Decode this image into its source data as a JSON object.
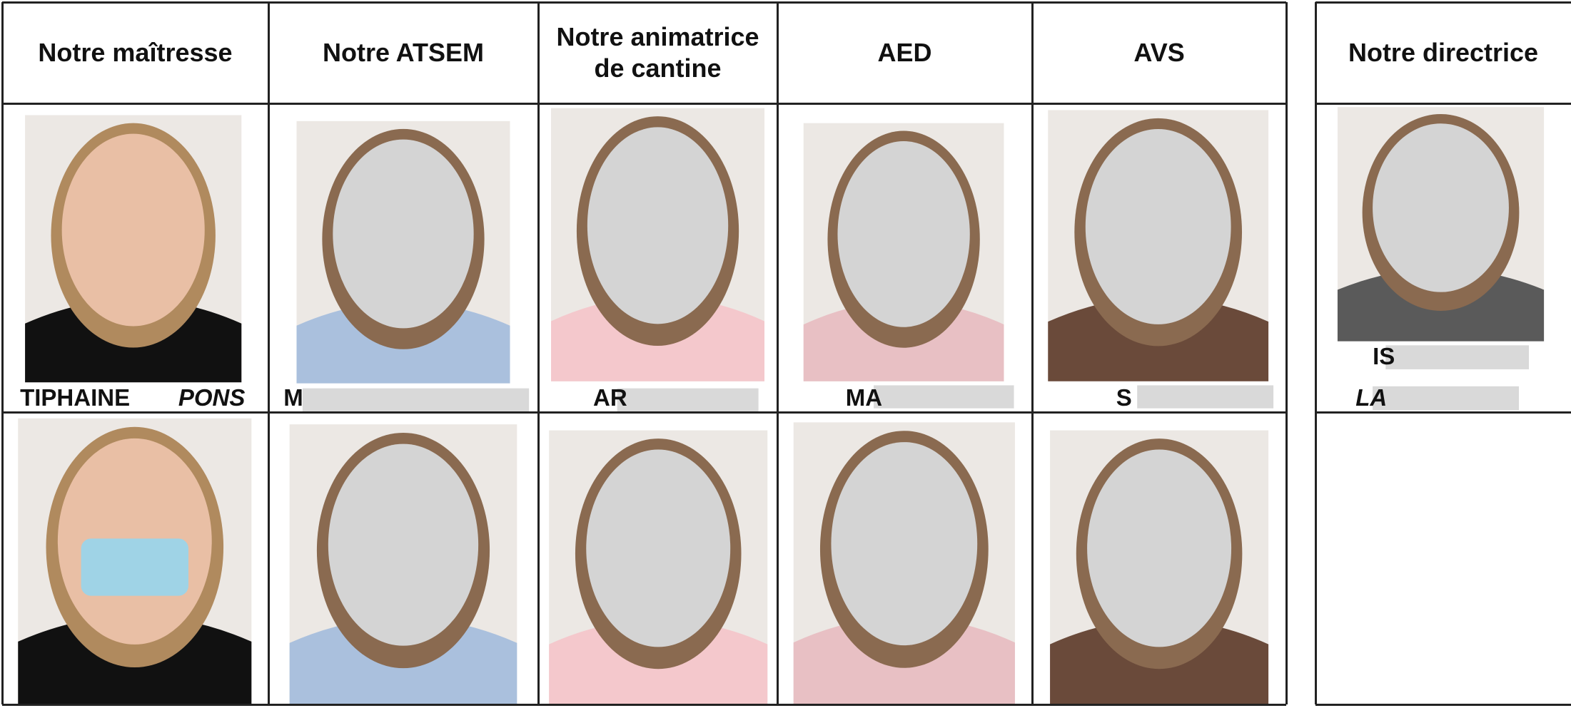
{
  "main_table": {
    "headers": [
      "Notre maîtresse",
      "Notre ATSEM",
      "Notre animatrice de cantine",
      "AED",
      "AVS"
    ],
    "names": [
      [
        "TIPHAINE",
        "PONS"
      ],
      [
        "M"
      ],
      [
        "AR"
      ],
      [
        "MA"
      ],
      [
        "S"
      ]
    ]
  },
  "side_table": {
    "header": "Notre directrice",
    "names": [
      "IS",
      "LA"
    ]
  }
}
